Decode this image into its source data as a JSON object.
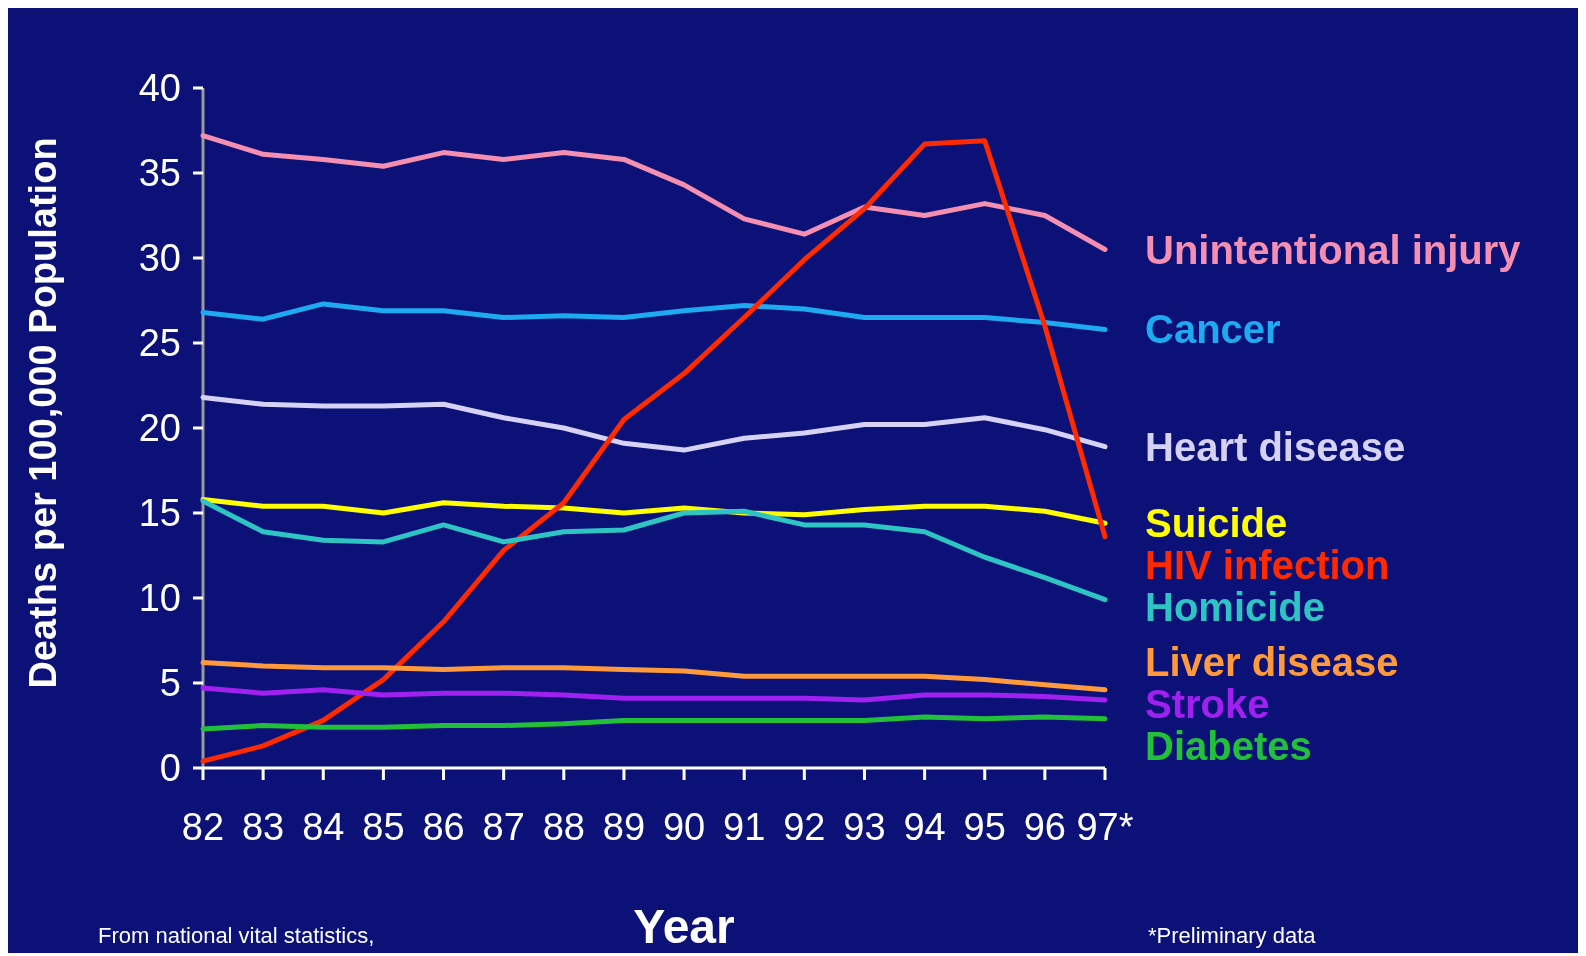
{
  "chart_data": {
    "type": "line",
    "xlabel": "Year",
    "ylabel": "Deaths per 100,000 Population",
    "categories": [
      "82",
      "83",
      "84",
      "85",
      "86",
      "87",
      "88",
      "89",
      "90",
      "91",
      "92",
      "93",
      "94",
      "95",
      "96",
      "97*"
    ],
    "ylim": [
      0,
      40
    ],
    "yticks": [
      0,
      5,
      10,
      15,
      20,
      25,
      30,
      35,
      40
    ],
    "grid": false,
    "marker": "none",
    "line_style": "solid",
    "series": [
      {
        "name": "Unintentional injury",
        "color": "#f48fb1",
        "values": [
          37.2,
          36.1,
          35.8,
          35.4,
          36.2,
          35.8,
          36.2,
          35.8,
          34.3,
          32.3,
          31.4,
          33.0,
          32.5,
          33.2,
          32.5,
          30.5
        ]
      },
      {
        "name": "Cancer",
        "color": "#1eaaf1",
        "values": [
          26.8,
          26.4,
          27.3,
          26.9,
          26.9,
          26.5,
          26.6,
          26.5,
          26.9,
          27.2,
          27.0,
          26.5,
          26.5,
          26.5,
          26.2,
          25.8
        ]
      },
      {
        "name": "Heart disease",
        "color": "#d6d2f5",
        "values": [
          21.8,
          21.4,
          21.3,
          21.3,
          21.4,
          20.6,
          20.0,
          19.1,
          18.7,
          19.4,
          19.7,
          20.2,
          20.2,
          20.6,
          19.9,
          18.9
        ]
      },
      {
        "name": "Suicide",
        "color": "#ffff00",
        "values": [
          15.8,
          15.4,
          15.4,
          15.0,
          15.6,
          15.4,
          15.3,
          15.0,
          15.3,
          15.0,
          14.9,
          15.2,
          15.4,
          15.4,
          15.1,
          14.4
        ]
      },
      {
        "name": "HIV infection",
        "color": "#ff2a00",
        "values": [
          0.4,
          1.3,
          2.8,
          5.2,
          8.6,
          12.8,
          15.6,
          20.5,
          23.2,
          26.5,
          29.9,
          32.9,
          36.7,
          36.9,
          26.0,
          13.6
        ]
      },
      {
        "name": "Homicide",
        "color": "#2ec4c4",
        "values": [
          15.7,
          13.9,
          13.4,
          13.3,
          14.3,
          13.3,
          13.9,
          14.0,
          15.0,
          15.1,
          14.3,
          14.3,
          13.9,
          12.4,
          11.2,
          9.9
        ]
      },
      {
        "name": "Liver disease",
        "color": "#ff9a3c",
        "values": [
          6.2,
          6.0,
          5.9,
          5.9,
          5.8,
          5.9,
          5.9,
          5.8,
          5.7,
          5.4,
          5.4,
          5.4,
          5.4,
          5.2,
          4.9,
          4.6
        ]
      },
      {
        "name": "Stroke",
        "color": "#a020f0",
        "values": [
          4.7,
          4.4,
          4.6,
          4.3,
          4.4,
          4.4,
          4.3,
          4.1,
          4.1,
          4.1,
          4.1,
          4.0,
          4.3,
          4.3,
          4.2,
          4.0
        ]
      },
      {
        "name": "Diabetes",
        "color": "#22c03a",
        "values": [
          2.3,
          2.5,
          2.4,
          2.4,
          2.5,
          2.5,
          2.6,
          2.8,
          2.8,
          2.8,
          2.8,
          2.8,
          3.0,
          2.9,
          3.0,
          2.9
        ]
      }
    ],
    "annotations": [
      "From national vital statistics,",
      "*Preliminary data"
    ]
  }
}
